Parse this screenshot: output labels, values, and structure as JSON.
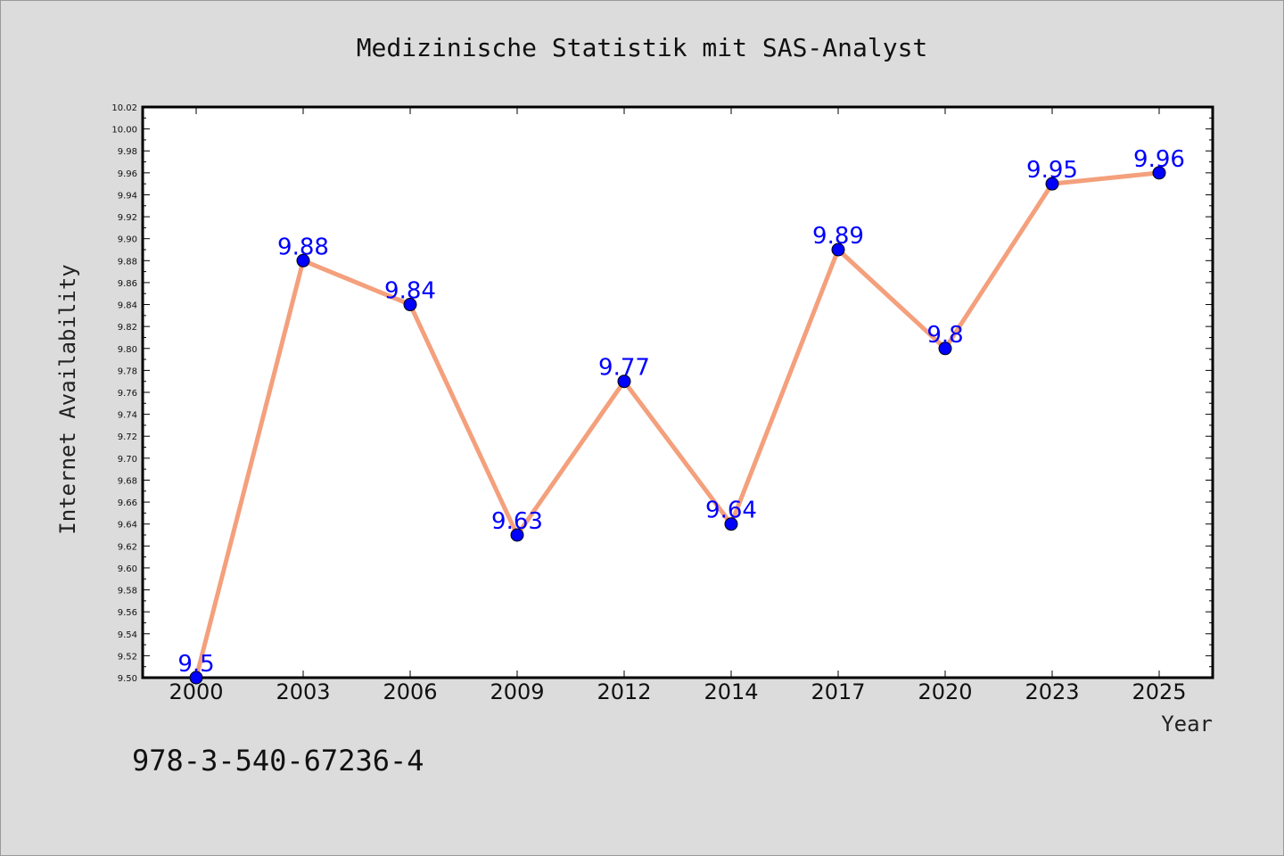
{
  "chart_data": {
    "type": "line",
    "title": "Medizinische Statistik mit SAS-Analyst",
    "xlabel": "Year",
    "ylabel": "Internet Availability",
    "categories": [
      "2000",
      "2003",
      "2006",
      "2009",
      "2012",
      "2014",
      "2017",
      "2020",
      "2023",
      "2025"
    ],
    "series": [
      {
        "values": [
          9.5,
          9.88,
          9.84,
          9.63,
          9.77,
          9.64,
          9.89,
          9.8,
          9.95,
          9.96
        ],
        "data_labels": [
          "9.5",
          "9.88",
          "9.84",
          "9.63",
          "9.77",
          "9.64",
          "9.89",
          "9.8",
          "9.95",
          "9.96"
        ],
        "line_color": "#f4a07c",
        "marker_color": "#0000ff"
      }
    ],
    "ylim": [
      9.5,
      10.02
    ],
    "yticks": [
      "9.50",
      "9.52",
      "9.54",
      "9.56",
      "9.58",
      "9.60",
      "9.62",
      "9.64",
      "9.66",
      "9.68",
      "9.70",
      "9.72",
      "9.74",
      "9.76",
      "9.78",
      "9.80",
      "9.82",
      "9.84",
      "9.86",
      "9.88",
      "9.90",
      "9.92",
      "9.94",
      "9.96",
      "9.98",
      "10.00",
      "10.02"
    ],
    "grid": false,
    "legend": "none",
    "background": "#dcdcdc",
    "plot_background": "#ffffff"
  },
  "annotation": {
    "isbn": "978-3-540-67236-4"
  }
}
